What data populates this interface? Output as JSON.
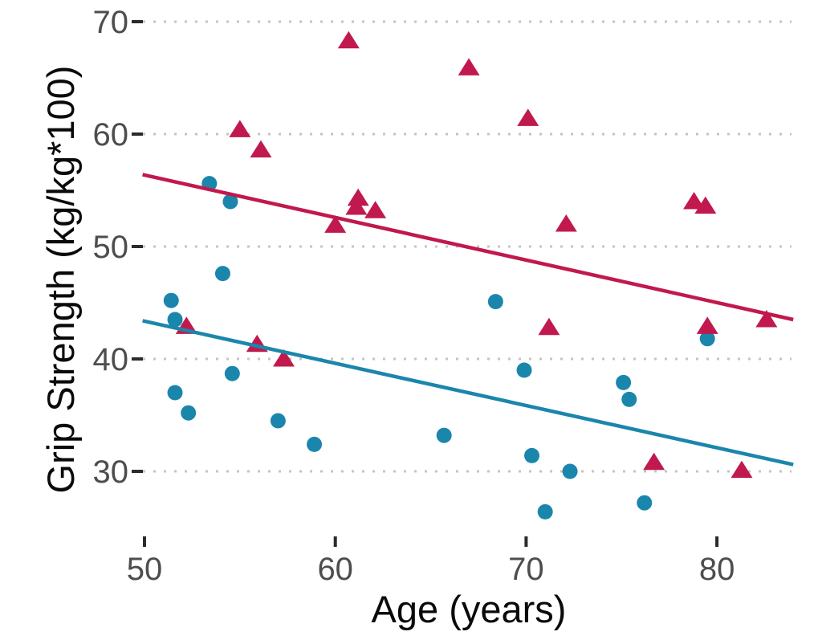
{
  "chart_data": {
    "type": "scatter",
    "title": "",
    "xlabel": "Age (years)",
    "ylabel": "Grip Strength (kg/kg*100)",
    "xticks": [
      50,
      60,
      70,
      80
    ],
    "yticks": [
      70,
      60,
      50,
      40,
      30
    ],
    "xlim": [
      49.9,
      84.0
    ],
    "ylim": [
      25.3,
      71.9
    ],
    "grid": "horizontal-dotted",
    "legend_position": "none",
    "colors": {
      "triangle_series": "#c1194d",
      "circle_series": "#1b86ac",
      "gridline": "#c4c4c4",
      "tick_mark": "#2b2b2b",
      "tick_label": "#4d4d4d",
      "axis_title": "#0a0a0a"
    },
    "series": [
      {
        "name": "triangle-group",
        "marker": "triangle",
        "color": "#c1194d",
        "points": [
          [
            52.2,
            42.9
          ],
          [
            55.0,
            60.4
          ],
          [
            55.9,
            41.3
          ],
          [
            56.1,
            58.6
          ],
          [
            57.3,
            40.0
          ],
          [
            60.0,
            51.9
          ],
          [
            60.7,
            68.3
          ],
          [
            61.1,
            53.5
          ],
          [
            61.2,
            54.3
          ],
          [
            62.1,
            53.2
          ],
          [
            67.0,
            65.9
          ],
          [
            70.1,
            61.4
          ],
          [
            71.2,
            42.8
          ],
          [
            72.1,
            52.0
          ],
          [
            76.7,
            30.8
          ],
          [
            78.8,
            54.0
          ],
          [
            79.4,
            53.6
          ],
          [
            79.5,
            42.9
          ],
          [
            81.3,
            30.1
          ],
          [
            82.6,
            43.5
          ]
        ],
        "trend_line": {
          "x1": 49.9,
          "y1": 56.4,
          "x2": 84.0,
          "y2": 43.5
        }
      },
      {
        "name": "circle-group",
        "marker": "circle",
        "color": "#1b86ac",
        "points": [
          [
            51.4,
            45.2
          ],
          [
            51.6,
            43.5
          ],
          [
            51.6,
            37.0
          ],
          [
            52.3,
            35.2
          ],
          [
            53.4,
            55.6
          ],
          [
            54.1,
            47.6
          ],
          [
            54.5,
            54.0
          ],
          [
            54.6,
            38.7
          ],
          [
            57.0,
            34.5
          ],
          [
            58.9,
            32.4
          ],
          [
            65.7,
            33.2
          ],
          [
            68.4,
            45.1
          ],
          [
            69.9,
            39.0
          ],
          [
            70.3,
            31.4
          ],
          [
            71.0,
            26.4
          ],
          [
            72.3,
            30.0
          ],
          [
            75.1,
            37.9
          ],
          [
            75.4,
            36.4
          ],
          [
            76.2,
            27.2
          ],
          [
            79.5,
            41.8
          ]
        ],
        "trend_line": {
          "x1": 49.9,
          "y1": 43.4,
          "x2": 84.0,
          "y2": 30.6
        }
      }
    ]
  }
}
